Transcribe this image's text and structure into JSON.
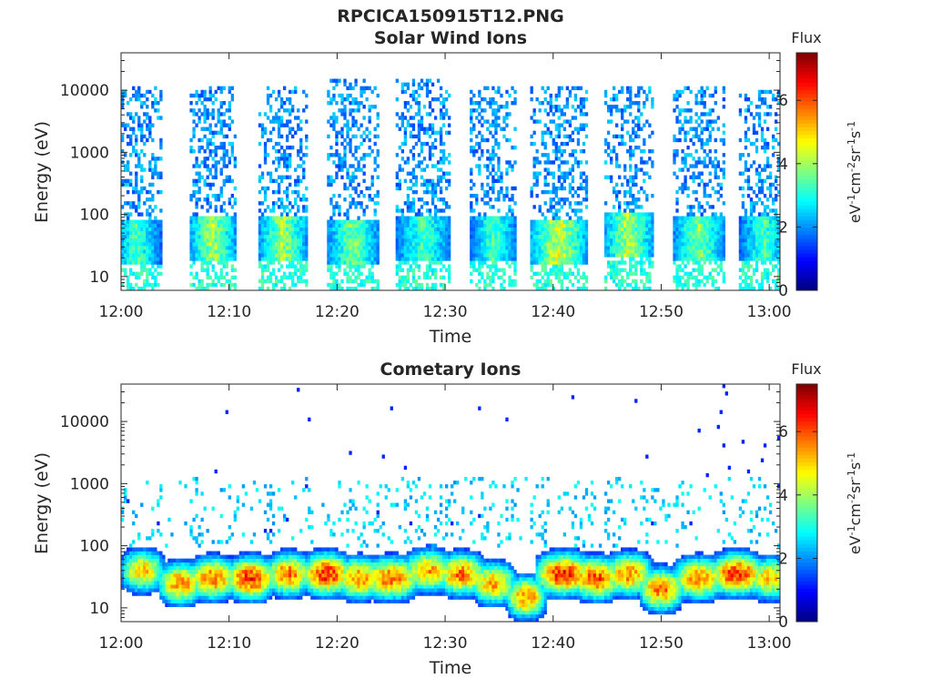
{
  "figure_title": "RPCICA150915T12.PNG",
  "colormap": "jet",
  "chart_data": [
    {
      "type": "heatmap",
      "title": "Solar Wind Ions",
      "xlabel": "Time",
      "ylabel": "Energy (eV)",
      "x_range": [
        "12:00",
        "13:01"
      ],
      "x_ticks": [
        "12:00",
        "12:10",
        "12:20",
        "12:30",
        "12:40",
        "12:50",
        "13:00"
      ],
      "y_scale": "log",
      "y_range": [
        6,
        40000
      ],
      "y_ticks": [
        "10",
        "100",
        "1000",
        "10000"
      ],
      "colorbar": {
        "title": "Flux",
        "label": "eV",
        "range": [
          0,
          7.5
        ],
        "ticks": [
          "0",
          "2",
          "4",
          "6"
        ]
      },
      "bursts": [
        {
          "center_min": 1.5,
          "width_min": 2.2,
          "core_flux": 4.0,
          "core_energy_ev": 35,
          "max_energy_ev": 12000
        },
        {
          "center_min": 8.5,
          "width_min": 2.2,
          "core_flux": 4.8,
          "core_energy_ev": 40,
          "max_energy_ev": 12000
        },
        {
          "center_min": 15.0,
          "width_min": 2.2,
          "core_flux": 4.8,
          "core_energy_ev": 40,
          "max_energy_ev": 12000
        },
        {
          "center_min": 21.5,
          "width_min": 2.4,
          "core_flux": 4.5,
          "core_energy_ev": 35,
          "max_energy_ev": 15000
        },
        {
          "center_min": 28.0,
          "width_min": 2.6,
          "core_flux": 4.0,
          "core_energy_ev": 40,
          "max_energy_ev": 15000
        },
        {
          "center_min": 34.5,
          "width_min": 2.2,
          "core_flux": 4.0,
          "core_energy_ev": 40,
          "max_energy_ev": 12000
        },
        {
          "center_min": 40.5,
          "width_min": 2.6,
          "core_flux": 5.2,
          "core_energy_ev": 35,
          "max_energy_ev": 12000
        },
        {
          "center_min": 47.0,
          "width_min": 2.2,
          "core_flux": 5.0,
          "core_energy_ev": 45,
          "max_energy_ev": 12000
        },
        {
          "center_min": 53.5,
          "width_min": 2.4,
          "core_flux": 4.5,
          "core_energy_ev": 40,
          "max_energy_ev": 12000
        },
        {
          "center_min": 59.5,
          "width_min": 2.2,
          "core_flux": 4.0,
          "core_energy_ev": 40,
          "max_energy_ev": 10000
        }
      ]
    },
    {
      "type": "heatmap",
      "title": "Cometary Ions",
      "xlabel": "Time",
      "ylabel": "Energy (eV)",
      "x_range": [
        "12:00",
        "13:01"
      ],
      "x_ticks": [
        "12:00",
        "12:10",
        "12:20",
        "12:30",
        "12:40",
        "12:50",
        "13:00"
      ],
      "y_scale": "log",
      "y_range": [
        6,
        40000
      ],
      "y_ticks": [
        "10",
        "100",
        "1000",
        "10000"
      ],
      "colorbar": {
        "title": "Flux",
        "label": "eV",
        "range": [
          0,
          7.5
        ],
        "ticks": [
          "0",
          "2",
          "4",
          "6"
        ]
      },
      "bursts": [
        {
          "center_min": 2.0,
          "width_min": 2.0,
          "core_flux": 5.5,
          "core_energy_ev": 40
        },
        {
          "center_min": 5.5,
          "width_min": 2.0,
          "core_flux": 6.0,
          "core_energy_ev": 25
        },
        {
          "center_min": 8.5,
          "width_min": 2.2,
          "core_flux": 6.2,
          "core_energy_ev": 30
        },
        {
          "center_min": 12.0,
          "width_min": 2.2,
          "core_flux": 6.8,
          "core_energy_ev": 30
        },
        {
          "center_min": 15.5,
          "width_min": 2.0,
          "core_flux": 6.2,
          "core_energy_ev": 35
        },
        {
          "center_min": 19.0,
          "width_min": 2.2,
          "core_flux": 6.8,
          "core_energy_ev": 35
        },
        {
          "center_min": 22.0,
          "width_min": 2.0,
          "core_flux": 6.0,
          "core_energy_ev": 30
        },
        {
          "center_min": 25.0,
          "width_min": 2.6,
          "core_flux": 6.2,
          "core_energy_ev": 30
        },
        {
          "center_min": 28.5,
          "width_min": 2.2,
          "core_flux": 5.8,
          "core_energy_ev": 40
        },
        {
          "center_min": 31.5,
          "width_min": 2.2,
          "core_flux": 6.2,
          "core_energy_ev": 35
        },
        {
          "center_min": 34.5,
          "width_min": 2.0,
          "core_flux": 5.8,
          "core_energy_ev": 25
        },
        {
          "center_min": 37.5,
          "width_min": 1.8,
          "core_flux": 6.0,
          "core_energy_ev": 15
        },
        {
          "center_min": 41.0,
          "width_min": 2.6,
          "core_flux": 6.8,
          "core_energy_ev": 35
        },
        {
          "center_min": 44.0,
          "width_min": 2.2,
          "core_flux": 6.5,
          "core_energy_ev": 30
        },
        {
          "center_min": 47.0,
          "width_min": 2.2,
          "core_flux": 6.0,
          "core_energy_ev": 35
        },
        {
          "center_min": 50.0,
          "width_min": 2.0,
          "core_flux": 6.2,
          "core_energy_ev": 20
        },
        {
          "center_min": 53.5,
          "width_min": 2.4,
          "core_flux": 6.0,
          "core_energy_ev": 30
        },
        {
          "center_min": 57.0,
          "width_min": 2.4,
          "core_flux": 6.8,
          "core_energy_ev": 35
        },
        {
          "center_min": 60.0,
          "width_min": 2.0,
          "core_flux": 5.5,
          "core_energy_ev": 30
        }
      ]
    }
  ]
}
